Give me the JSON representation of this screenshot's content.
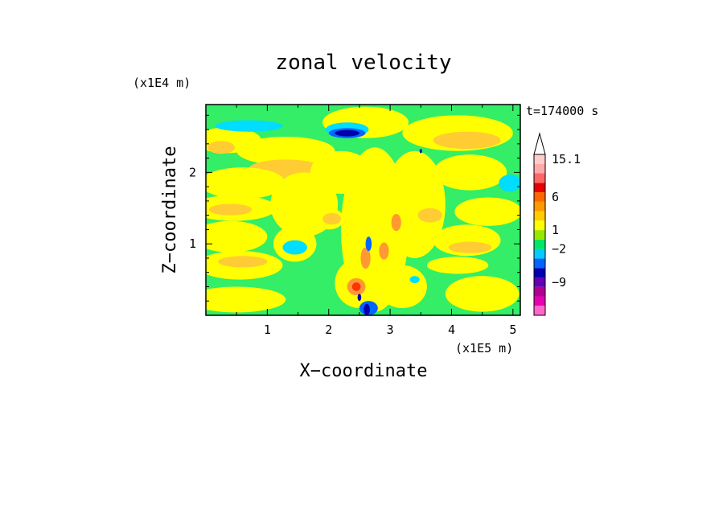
{
  "chart_data": {
    "type": "heatmap",
    "title": "zonal velocity",
    "time_label": "t=174000 s",
    "xlabel": "X−coordinate",
    "ylabel": "Z−coordinate",
    "x_unit": "(x1E5 m)",
    "y_unit": "(x1E4 m)",
    "xlim": [
      0,
      5.12
    ],
    "ylim": [
      0,
      2.95
    ],
    "x_ticks": [
      {
        "value": 1,
        "label": "1"
      },
      {
        "value": 2,
        "label": "2"
      },
      {
        "value": 3,
        "label": "3"
      },
      {
        "value": 4,
        "label": "4"
      },
      {
        "value": 5,
        "label": "5"
      }
    ],
    "y_ticks": [
      {
        "value": 1,
        "label": "1"
      },
      {
        "value": 2,
        "label": "2"
      }
    ],
    "colorbar": {
      "colors": [
        "#ff66cc",
        "#e600b3",
        "#b2008f",
        "#6600b3",
        "#0000b3",
        "#0066ff",
        "#00ccff",
        "#00e666",
        "#99e600",
        "#ffff00",
        "#ffcc00",
        "#ff9900",
        "#ff6600",
        "#e60000",
        "#ff6666",
        "#ffaaaa",
        "#ffcccc"
      ],
      "labels": [
        {
          "index": 3,
          "label": "−9"
        },
        {
          "index": 6.5,
          "label": "−2"
        },
        {
          "index": 8.5,
          "label": "1"
        },
        {
          "index": 12,
          "label": "6"
        },
        {
          "index": 16,
          "label": "15.1"
        }
      ]
    },
    "field": {
      "background": "#33ee66",
      "palette": {
        "green": "#33ee66",
        "yellow": "#ffff00",
        "orange": "#ffcc33",
        "dark_orange": "#ff9933",
        "red": "#ff3300",
        "cyan": "#00ddff",
        "blue": "#0066ff",
        "navy": "#0000aa"
      },
      "blobs": [
        {
          "x": 0.35,
          "z": 2.45,
          "rx": 0.55,
          "rz": 0.18,
          "c": "yellow"
        },
        {
          "x": 0.25,
          "z": 2.35,
          "rx": 0.22,
          "rz": 0.09,
          "c": "orange"
        },
        {
          "x": 1.3,
          "z": 2.3,
          "rx": 0.8,
          "rz": 0.2,
          "c": "yellow"
        },
        {
          "x": 1.3,
          "z": 2.05,
          "rx": 0.6,
          "rz": 0.13,
          "c": "orange"
        },
        {
          "x": 0.6,
          "z": 1.85,
          "rx": 0.7,
          "rz": 0.22,
          "c": "yellow"
        },
        {
          "x": 0.45,
          "z": 1.5,
          "rx": 0.7,
          "rz": 0.18,
          "c": "yellow"
        },
        {
          "x": 0.4,
          "z": 1.48,
          "rx": 0.35,
          "rz": 0.08,
          "c": "orange"
        },
        {
          "x": 0.4,
          "z": 1.1,
          "rx": 0.6,
          "rz": 0.22,
          "c": "yellow"
        },
        {
          "x": 0.55,
          "z": 0.7,
          "rx": 0.7,
          "rz": 0.2,
          "c": "yellow"
        },
        {
          "x": 0.6,
          "z": 0.75,
          "rx": 0.4,
          "rz": 0.08,
          "c": "orange"
        },
        {
          "x": 0.5,
          "z": 0.22,
          "rx": 0.8,
          "rz": 0.18,
          "c": "yellow"
        },
        {
          "x": 1.6,
          "z": 1.55,
          "rx": 0.55,
          "rz": 0.45,
          "c": "yellow"
        },
        {
          "x": 1.45,
          "z": 1.0,
          "rx": 0.35,
          "rz": 0.25,
          "c": "yellow"
        },
        {
          "x": 1.45,
          "z": 0.95,
          "rx": 0.2,
          "rz": 0.1,
          "c": "cyan"
        },
        {
          "x": 2.6,
          "z": 2.7,
          "rx": 0.7,
          "rz": 0.22,
          "c": "yellow"
        },
        {
          "x": 2.2,
          "z": 2.0,
          "rx": 0.5,
          "rz": 0.3,
          "c": "yellow"
        },
        {
          "x": 2.0,
          "z": 1.35,
          "rx": 0.25,
          "rz": 0.15,
          "c": "yellow"
        },
        {
          "x": 2.05,
          "z": 1.35,
          "rx": 0.15,
          "rz": 0.08,
          "c": "orange"
        },
        {
          "x": 2.75,
          "z": 1.2,
          "rx": 0.55,
          "rz": 1.15,
          "c": "yellow"
        },
        {
          "x": 3.4,
          "z": 1.55,
          "rx": 0.5,
          "rz": 0.75,
          "c": "yellow"
        },
        {
          "x": 2.5,
          "z": 0.45,
          "rx": 0.4,
          "rz": 0.35,
          "c": "yellow"
        },
        {
          "x": 2.45,
          "z": 0.4,
          "rx": 0.15,
          "rz": 0.12,
          "c": "dark_orange"
        },
        {
          "x": 2.45,
          "z": 0.4,
          "rx": 0.07,
          "rz": 0.06,
          "c": "red"
        },
        {
          "x": 3.2,
          "z": 0.4,
          "rx": 0.4,
          "rz": 0.3,
          "c": "yellow"
        },
        {
          "x": 2.6,
          "z": 0.8,
          "rx": 0.08,
          "rz": 0.15,
          "c": "dark_orange"
        },
        {
          "x": 2.9,
          "z": 0.9,
          "rx": 0.08,
          "rz": 0.12,
          "c": "dark_orange"
        },
        {
          "x": 3.1,
          "z": 1.3,
          "rx": 0.08,
          "rz": 0.12,
          "c": "dark_orange"
        },
        {
          "x": 4.1,
          "z": 2.55,
          "rx": 0.9,
          "rz": 0.25,
          "c": "yellow"
        },
        {
          "x": 4.25,
          "z": 2.45,
          "rx": 0.55,
          "rz": 0.12,
          "c": "orange"
        },
        {
          "x": 4.3,
          "z": 2.0,
          "rx": 0.6,
          "rz": 0.25,
          "c": "yellow"
        },
        {
          "x": 4.6,
          "z": 1.45,
          "rx": 0.55,
          "rz": 0.2,
          "c": "yellow"
        },
        {
          "x": 4.25,
          "z": 1.05,
          "rx": 0.55,
          "rz": 0.22,
          "c": "yellow"
        },
        {
          "x": 4.3,
          "z": 0.95,
          "rx": 0.35,
          "rz": 0.08,
          "c": "orange"
        },
        {
          "x": 4.5,
          "z": 0.3,
          "rx": 0.6,
          "rz": 0.25,
          "c": "yellow"
        },
        {
          "x": 4.1,
          "z": 0.7,
          "rx": 0.5,
          "rz": 0.12,
          "c": "yellow"
        },
        {
          "x": 3.65,
          "z": 1.4,
          "rx": 0.2,
          "rz": 0.1,
          "c": "orange"
        },
        {
          "x": 0.7,
          "z": 2.65,
          "rx": 0.55,
          "rz": 0.08,
          "c": "cyan"
        },
        {
          "x": 2.3,
          "z": 2.6,
          "rx": 0.35,
          "rz": 0.1,
          "c": "cyan"
        },
        {
          "x": 2.3,
          "z": 2.55,
          "rx": 0.3,
          "rz": 0.07,
          "c": "blue"
        },
        {
          "x": 2.3,
          "z": 2.55,
          "rx": 0.2,
          "rz": 0.045,
          "c": "navy"
        },
        {
          "x": 4.95,
          "z": 1.85,
          "rx": 0.18,
          "rz": 0.12,
          "c": "cyan"
        },
        {
          "x": 2.65,
          "z": 0.1,
          "rx": 0.15,
          "rz": 0.1,
          "c": "blue"
        },
        {
          "x": 2.62,
          "z": 0.08,
          "rx": 0.05,
          "rz": 0.08,
          "c": "navy"
        },
        {
          "x": 2.5,
          "z": 0.25,
          "rx": 0.03,
          "rz": 0.05,
          "c": "navy"
        },
        {
          "x": 2.65,
          "z": 1.0,
          "rx": 0.05,
          "rz": 0.1,
          "c": "blue"
        },
        {
          "x": 3.5,
          "z": 2.3,
          "rx": 0.02,
          "rz": 0.03,
          "c": "navy"
        },
        {
          "x": 3.4,
          "z": 0.5,
          "rx": 0.08,
          "rz": 0.05,
          "c": "cyan"
        }
      ]
    }
  }
}
